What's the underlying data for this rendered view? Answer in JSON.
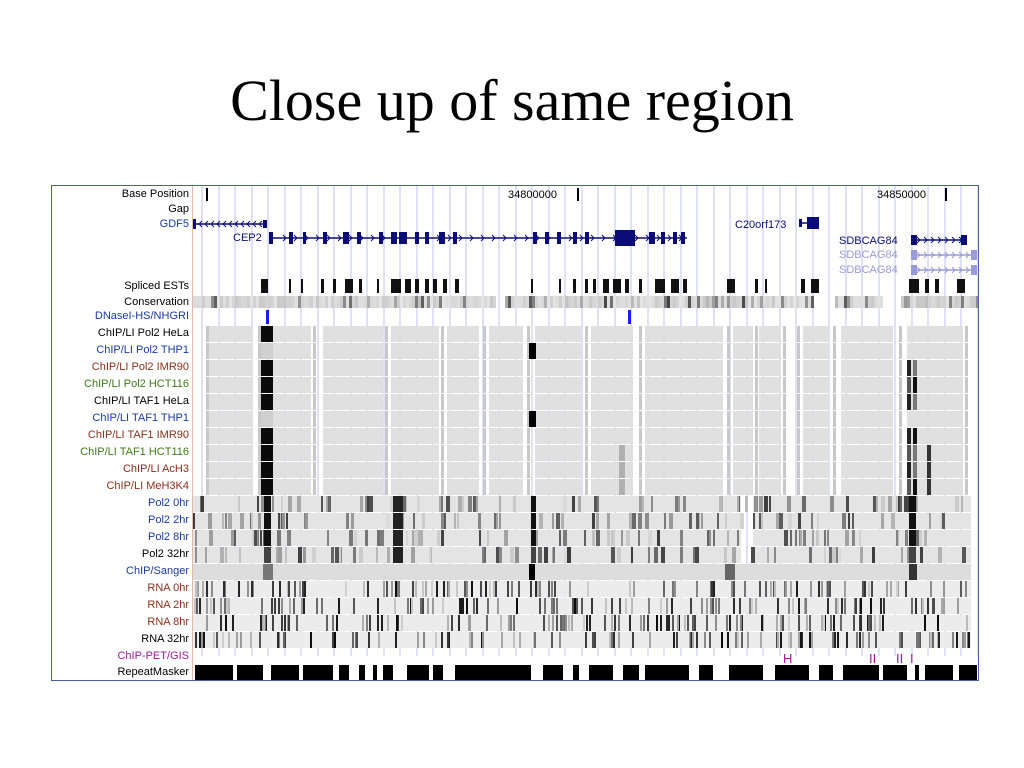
{
  "slide": {
    "title": "Close up of same region"
  },
  "colors": {
    "panel_border": "#4b5fa8",
    "gene_blue": "#0c0c78",
    "gene_light": "#9a9ad8",
    "guide_lines": "#c8cdf2",
    "track_gray": "#dcdcdc",
    "black": "#000000",
    "magenta": "#a0189a",
    "blue_label": "#1a3aa6",
    "brown_label": "#8a2f1c",
    "green_label": "#3f7a1a"
  },
  "browser": {
    "coordinates": {
      "left_tick": "34800000",
      "right_tick": "34850000"
    },
    "genes": {
      "gdf5": "GDF5",
      "cep2": "CEP2",
      "c20orf173": "C20orf173",
      "sdbcag84_a": "SDBCAG84",
      "sdbcag84_b": "SDBCAG84",
      "sdbcag84_c": "SDBCAG84"
    },
    "pet_marks": {
      "mark_a": "H",
      "mark_b": "II",
      "mark_c": "II",
      "mark_d": "I"
    },
    "track_labels": [
      {
        "key": "base_position",
        "text": "Base Position",
        "color": "#000000"
      },
      {
        "key": "gap",
        "text": "Gap",
        "color": "#000000"
      },
      {
        "key": "gdf5",
        "text": "GDF5",
        "color": "#1a3aa6"
      },
      {
        "key": "spliced_ests",
        "text": "Spliced ESTs",
        "color": "#000000"
      },
      {
        "key": "conservation",
        "text": "Conservation",
        "color": "#000000"
      },
      {
        "key": "dnasel_hs",
        "text": "DNaseI-HS/NHGRI",
        "color": "#1a3aa6"
      },
      {
        "key": "pol2_hela",
        "text": "ChIP/LI Pol2 HeLa",
        "color": "#000000"
      },
      {
        "key": "pol2_thp1",
        "text": "ChIP/LI Pol2 THP1",
        "color": "#1a3aa6"
      },
      {
        "key": "pol2_imr90",
        "text": "ChIP/LI Pol2 IMR90",
        "color": "#8a2f1c"
      },
      {
        "key": "pol2_hct116",
        "text": "ChIP/LI Pol2 HCT116",
        "color": "#3f7a1a"
      },
      {
        "key": "taf1_hela",
        "text": "ChIP/LI TAF1 HeLa",
        "color": "#000000"
      },
      {
        "key": "taf1_thp1",
        "text": "ChIP/LI TAF1 THP1",
        "color": "#1a3aa6"
      },
      {
        "key": "taf1_imr90",
        "text": "ChIP/LI TAF1 IMR90",
        "color": "#8a2f1c"
      },
      {
        "key": "taf1_hct116",
        "text": "ChIP/LI TAF1 HCT116",
        "color": "#3f7a1a"
      },
      {
        "key": "ach3",
        "text": "ChIP/LI AcH3",
        "color": "#8a2f1c"
      },
      {
        "key": "meh3k4",
        "text": "ChIP/LI MeH3K4",
        "color": "#8a2f1c"
      },
      {
        "key": "pol2_0hr",
        "text": "Pol2 0hr",
        "color": "#1a3aa6"
      },
      {
        "key": "pol2_2hr",
        "text": "Pol2 2hr",
        "color": "#1a3aa6"
      },
      {
        "key": "pol2_8hr",
        "text": "Pol2 8hr",
        "color": "#1a3aa6"
      },
      {
        "key": "pol2_32hr",
        "text": "Pol2 32hr",
        "color": "#000000"
      },
      {
        "key": "chip_sanger",
        "text": "ChIP/Sanger",
        "color": "#1a3aa6"
      },
      {
        "key": "rna_0hr",
        "text": "RNA 0hr",
        "color": "#8a2f1c"
      },
      {
        "key": "rna_2hr",
        "text": "RNA 2hr",
        "color": "#8a2f1c"
      },
      {
        "key": "rna_8hr",
        "text": "RNA 8hr",
        "color": "#8a2f1c"
      },
      {
        "key": "rna_32hr",
        "text": "RNA 32hr",
        "color": "#000000"
      },
      {
        "key": "chip_pet_gis",
        "text": "ChIP-PET/GIS",
        "color": "#a0189a"
      },
      {
        "key": "repeatmasker",
        "text": "RepeatMasker",
        "color": "#000000"
      }
    ]
  }
}
